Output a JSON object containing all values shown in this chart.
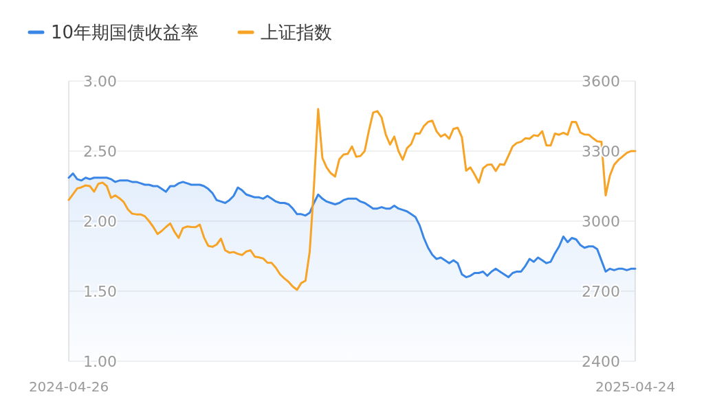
{
  "chart_data": {
    "type": "area",
    "categories": [
      "2024-04-26",
      null,
      null,
      null,
      null,
      null,
      null,
      null,
      null,
      null,
      null,
      null,
      null,
      null,
      null,
      null,
      null,
      null,
      null,
      null,
      null,
      null,
      null,
      null,
      null,
      null,
      null,
      null,
      null,
      null,
      null,
      null,
      null,
      null,
      null,
      null,
      null,
      null,
      null,
      null,
      null,
      null,
      null,
      null,
      null,
      null,
      null,
      null,
      null,
      null,
      null,
      null,
      null,
      null,
      null,
      null,
      null,
      null,
      null,
      null,
      null,
      null,
      null,
      null,
      null,
      null,
      null,
      null,
      null,
      null,
      null,
      null,
      null,
      null,
      null,
      null,
      null,
      null,
      null,
      null,
      null,
      null,
      null,
      null,
      null,
      null,
      null,
      null,
      null,
      null,
      null,
      null,
      null,
      null,
      null,
      null,
      null,
      null,
      null,
      null,
      null,
      null,
      null,
      null,
      null,
      null,
      null,
      null,
      null,
      null,
      null,
      null,
      null,
      null,
      null,
      null,
      null,
      null,
      null,
      null,
      null,
      null,
      null,
      null,
      null,
      null,
      null,
      null,
      null,
      null,
      null,
      null,
      null,
      null,
      "2025-04-24"
    ],
    "series": [
      {
        "name": "10年期国债收益率",
        "color": "#3a86e6",
        "values": [
          2.31,
          2.34,
          2.3,
          2.29,
          2.31,
          2.3,
          2.31,
          2.31,
          2.31,
          2.31,
          2.3,
          2.28,
          2.29,
          2.29,
          2.29,
          2.28,
          2.28,
          2.27,
          2.26,
          2.26,
          2.25,
          2.25,
          2.23,
          2.21,
          2.25,
          2.25,
          2.27,
          2.28,
          2.27,
          2.26,
          2.26,
          2.26,
          2.25,
          2.23,
          2.2,
          2.15,
          2.14,
          2.13,
          2.15,
          2.18,
          2.24,
          2.22,
          2.19,
          2.18,
          2.17,
          2.17,
          2.16,
          2.18,
          2.16,
          2.14,
          2.13,
          2.13,
          2.12,
          2.09,
          2.05,
          2.05,
          2.04,
          2.06,
          2.13,
          2.19,
          2.16,
          2.14,
          2.13,
          2.12,
          2.13,
          2.15,
          2.16,
          2.16,
          2.16,
          2.14,
          2.13,
          2.11,
          2.09,
          2.09,
          2.1,
          2.09,
          2.09,
          2.11,
          2.09,
          2.08,
          2.07,
          2.05,
          2.03,
          1.97,
          1.88,
          1.81,
          1.76,
          1.73,
          1.74,
          1.72,
          1.7,
          1.72,
          1.7,
          1.62,
          1.6,
          1.61,
          1.63,
          1.63,
          1.64,
          1.61,
          1.64,
          1.66,
          1.64,
          1.62,
          1.6,
          1.63,
          1.64,
          1.64,
          1.68,
          1.73,
          1.71,
          1.74,
          1.72,
          1.7,
          1.71,
          1.77,
          1.82,
          1.89,
          1.85,
          1.88,
          1.87,
          1.83,
          1.81,
          1.82,
          1.82,
          1.8,
          1.72,
          1.64,
          1.66,
          1.65,
          1.66,
          1.66,
          1.65,
          1.66,
          1.66
        ]
      },
      {
        "name": "上证指数",
        "type": "line",
        "axis": "y2",
        "color": "#f7a325",
        "values": [
          3091,
          3115,
          3140,
          3145,
          3153,
          3150,
          3126,
          3160,
          3165,
          3150,
          3100,
          3110,
          3098,
          3082,
          3050,
          3032,
          3029,
          3029,
          3021,
          3000,
          2975,
          2945,
          2958,
          2975,
          2990,
          2955,
          2928,
          2970,
          2977,
          2975,
          2974,
          2985,
          2930,
          2894,
          2890,
          2900,
          2925,
          2875,
          2865,
          2868,
          2860,
          2855,
          2870,
          2875,
          2848,
          2845,
          2840,
          2822,
          2821,
          2800,
          2772,
          2755,
          2740,
          2720,
          2706,
          2735,
          2745,
          2870,
          3150,
          3480,
          3270,
          3230,
          3205,
          3191,
          3265,
          3285,
          3288,
          3320,
          3276,
          3279,
          3300,
          3388,
          3465,
          3471,
          3444,
          3370,
          3328,
          3362,
          3300,
          3263,
          3312,
          3330,
          3375,
          3375,
          3407,
          3425,
          3430,
          3385,
          3362,
          3372,
          3353,
          3395,
          3400,
          3359,
          3216,
          3230,
          3200,
          3165,
          3226,
          3241,
          3243,
          3215,
          3244,
          3241,
          3280,
          3320,
          3335,
          3340,
          3355,
          3353,
          3368,
          3365,
          3385,
          3324,
          3324,
          3375,
          3370,
          3378,
          3370,
          3425,
          3424,
          3380,
          3371,
          3370,
          3355,
          3342,
          3340,
          3110,
          3195,
          3241,
          3262,
          3277,
          3292,
          3300,
          3300
        ]
      }
    ],
    "ylim": [
      1,
      3
    ],
    "yticks": [
      {
        "value": 1,
        "label": "1.00"
      },
      {
        "value": 1.5,
        "label": "1.50"
      },
      {
        "value": 2,
        "label": "2.00"
      },
      {
        "value": 2.5,
        "label": "2.50"
      },
      {
        "value": 3,
        "label": "3.00"
      }
    ],
    "y2lim": [
      2400,
      3600
    ],
    "y2ticks": [
      2400,
      2700,
      3000,
      3300,
      3600
    ],
    "grid": "y",
    "legend": "top left"
  }
}
